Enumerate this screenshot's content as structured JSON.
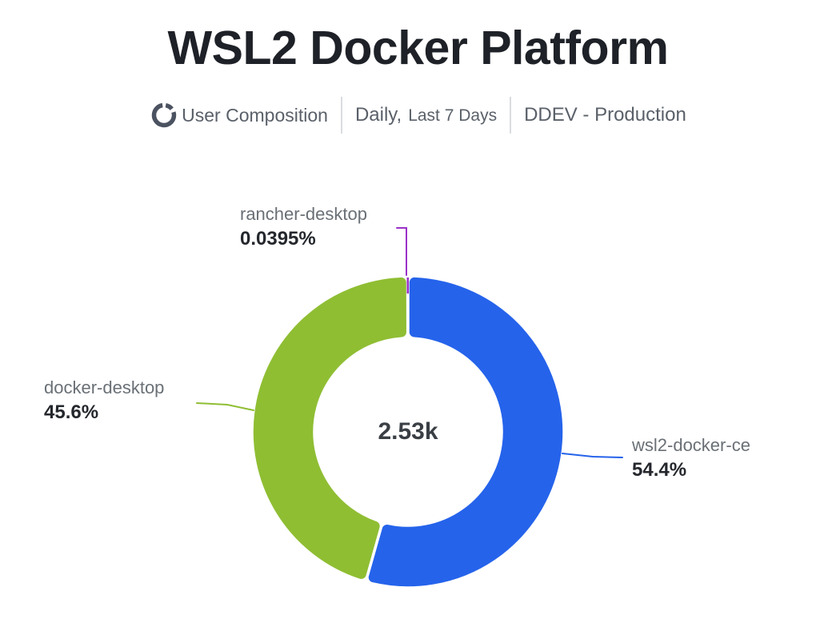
{
  "header": {
    "title": "WSL2 Docker Platform",
    "icon": "donut-chart-icon",
    "metric": "User Composition",
    "period": "Daily,",
    "period_range": "Last 7 Days",
    "segment": "DDEV - Production"
  },
  "colors": {
    "background": "#FFFFFF",
    "title_text": "#1E2127",
    "subtitle_text": "#5A6069",
    "subtitle_icon": "#4B5260",
    "divider": "#D9DCE0",
    "label_name_text": "#6A7076",
    "label_value_text": "#24272C",
    "center_text": "#3A3F45",
    "slice_border": "#FFFFFF"
  },
  "chart_data": {
    "type": "pie",
    "subtype": "donut",
    "title": "WSL2 Docker Platform",
    "center_total_label": "2.53k",
    "legend_position": "none",
    "slice_order": "clockwise-from-top",
    "grid": false,
    "series": [
      {
        "name": "wsl2-docker-ce",
        "percent": 54.4,
        "percent_label": "54.4%",
        "color": "#2563EB"
      },
      {
        "name": "docker-desktop",
        "percent": 45.6,
        "percent_label": "45.6%",
        "color": "#8FBE33"
      },
      {
        "name": "rancher-desktop",
        "percent": 0.0395,
        "percent_label": "0.0395%",
        "color": "#9B30C9"
      }
    ]
  }
}
